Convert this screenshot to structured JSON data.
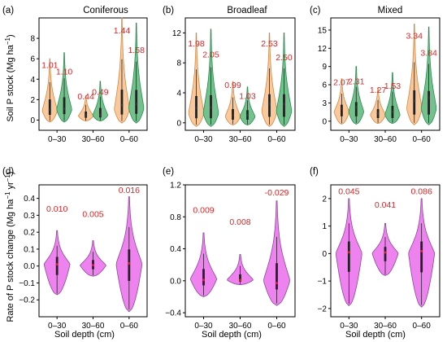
{
  "colors": {
    "orange_fill": "#f9c89b",
    "orange_stroke": "#d08a4a",
    "green_fill": "#73c28d",
    "green_stroke": "#2f8a52",
    "magenta_fill": "#ee82ee",
    "magenta_stroke": "#8a4a9a",
    "value_label": "#d62728"
  },
  "figure": {
    "ylabel_top_main": "Soil P stock (Mg ha",
    "ylabel_top_sup": "−1",
    "ylabel_top_end": ")",
    "ylabel_bottom_main": "Rate of P stock change (Mg ha",
    "ylabel_bottom_sup1": "−1",
    "ylabel_bottom_mid": " yr",
    "ylabel_bottom_sup2": "−1",
    "ylabel_bottom_end": ")",
    "xlabel": "Soil depth (cm)"
  },
  "chart_data": [
    {
      "panel": "(a)",
      "title": "Coniferous",
      "type": "violin",
      "categories": [
        "0–30",
        "30–60",
        "0–60"
      ],
      "ylim": [
        -1,
        10
      ],
      "yticks": [
        0,
        2,
        4,
        6,
        8
      ],
      "series": [
        {
          "color": "orange",
          "means": [
            1.01,
            0.44,
            1.44
          ],
          "mean_labels": [
            "1.01",
            "0.44",
            "1.44"
          ],
          "max": [
            6.0,
            2.4,
            10.0
          ],
          "min": [
            -0.2,
            -0.1,
            -0.3
          ],
          "mode": [
            0.9,
            0.4,
            1.0
          ]
        },
        {
          "color": "green",
          "means": [
            1.1,
            0.49,
            1.58
          ],
          "mean_labels": [
            "1.10",
            "0.49",
            "1.58"
          ],
          "max": [
            6.6,
            3.8,
            9.5
          ],
          "min": [
            -0.2,
            -0.1,
            -0.3
          ],
          "mode": [
            1.0,
            0.45,
            1.1
          ]
        }
      ]
    },
    {
      "panel": "(b)",
      "title": "Broadleaf",
      "type": "violin",
      "categories": [
        "0–30",
        "30–60",
        "0–60"
      ],
      "ylim": [
        -1,
        14
      ],
      "yticks": [
        0,
        4,
        8,
        12
      ],
      "series": [
        {
          "color": "orange",
          "means": [
            1.98,
            0.99,
            2.53
          ],
          "mean_labels": [
            "1.98",
            "0.99",
            "2.53"
          ],
          "max": [
            12.0,
            5.5,
            12.0
          ],
          "min": [
            -0.5,
            -0.3,
            -0.5
          ],
          "mode": [
            1.2,
            0.8,
            1.5
          ]
        },
        {
          "color": "green",
          "means": [
            2.05,
            1.03,
            2.5
          ],
          "mean_labels": [
            "2.05",
            "1.03",
            "2.50"
          ],
          "max": [
            12.5,
            4.8,
            12.0
          ],
          "min": [
            -0.5,
            -0.3,
            -0.5
          ],
          "mode": [
            1.2,
            0.8,
            1.5
          ]
        }
      ]
    },
    {
      "panel": "(c)",
      "title": "Mixed",
      "type": "violin",
      "categories": [
        "0–30",
        "30–60",
        "0–60"
      ],
      "ylim": [
        -1.5,
        17
      ],
      "yticks": [
        0,
        3,
        6,
        9,
        12,
        15
      ],
      "series": [
        {
          "color": "orange",
          "means": [
            2.07,
            1.27,
            3.34
          ],
          "mean_labels": [
            "2.07",
            "1.27",
            "3.34"
          ],
          "max": [
            7.0,
            5.5,
            16.0
          ],
          "min": [
            -0.5,
            -0.4,
            -0.6
          ],
          "mode": [
            1.5,
            1.0,
            2.0
          ]
        },
        {
          "color": "green",
          "means": [
            2.31,
            1.53,
            3.84
          ],
          "mean_labels": [
            "2.31",
            "1.53",
            "3.84"
          ],
          "max": [
            9.0,
            8.0,
            15.5
          ],
          "min": [
            -0.5,
            -0.4,
            -0.6
          ],
          "mode": [
            1.5,
            1.0,
            2.0
          ]
        }
      ]
    },
    {
      "panel": "(d)",
      "type": "violin",
      "categories": [
        "0–30",
        "30–60",
        "0–60"
      ],
      "ylim": [
        -0.3,
        0.48
      ],
      "yticks": [
        -0.2,
        -0.1,
        0.0,
        0.1,
        0.2,
        0.3,
        0.4
      ],
      "series": [
        {
          "color": "magenta",
          "means": [
            0.01,
            0.005,
            0.016
          ],
          "mean_labels": [
            "0.010",
            "0.005",
            "0.016"
          ],
          "max": [
            0.21,
            0.15,
            0.41
          ],
          "min": [
            -0.17,
            -0.06,
            -0.27
          ],
          "mode": [
            0.01,
            0.003,
            0.01
          ]
        }
      ]
    },
    {
      "panel": "(e)",
      "type": "violin",
      "categories": [
        "0–30",
        "30–60",
        "0–60"
      ],
      "ylim": [
        -0.45,
        1.2
      ],
      "yticks": [
        -0.4,
        0.0,
        0.4,
        0.8,
        1.2
      ],
      "series": [
        {
          "color": "magenta",
          "means": [
            0.009,
            0.008,
            -0.029
          ],
          "mean_labels": [
            "0.009",
            "0.008",
            "-0.029"
          ],
          "max": [
            0.6,
            0.33,
            1.0
          ],
          "min": [
            -0.2,
            -0.05,
            -0.31
          ],
          "mode": [
            0.02,
            0.01,
            0.0
          ]
        }
      ]
    },
    {
      "panel": "(f)",
      "type": "violin",
      "categories": [
        "0–30",
        "30–60",
        "0–60"
      ],
      "ylim": [
        -2.3,
        2.5
      ],
      "yticks": [
        -2,
        -1,
        0,
        1,
        2
      ],
      "series": [
        {
          "color": "magenta",
          "means": [
            0.045,
            0.041,
            0.086
          ],
          "mean_labels": [
            "0.045",
            "0.041",
            "0.086"
          ],
          "max": [
            2.0,
            1.1,
            2.0
          ],
          "min": [
            -1.9,
            -0.8,
            -1.95
          ],
          "mode": [
            0.0,
            0.0,
            0.0
          ]
        }
      ]
    }
  ]
}
